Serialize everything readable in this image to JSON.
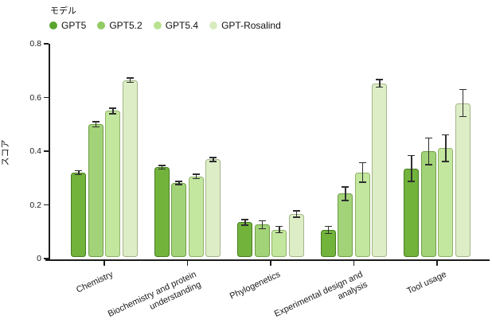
{
  "chart_data": {
    "type": "bar",
    "title": "",
    "legend_title": "モデル",
    "ylabel": "スコア",
    "xlabel": "",
    "ylim": [
      0,
      0.8
    ],
    "y_ticks": [
      0,
      0.2,
      0.4,
      0.6,
      0.8
    ],
    "y_tick_labels": [
      "0",
      "0.2",
      "0.4",
      "0.6",
      "0.8"
    ],
    "grid": false,
    "legend_position": "top-left",
    "error_bars": true,
    "categories": [
      "Chemistry",
      "Biochemistry and protein\nunderstanding",
      "Phylogenetics",
      "Experimental design and\nanalysis",
      "Tool usage"
    ],
    "series": [
      {
        "name": "GPT5",
        "dot": "#5aa52e",
        "fill": "#72b33c",
        "stroke": "#497c22",
        "values": [
          0.32,
          0.34,
          0.135,
          0.107,
          0.335
        ],
        "errors": [
          0.008,
          0.006,
          0.01,
          0.013,
          0.048
        ]
      },
      {
        "name": "GPT5.2",
        "dot": "#90cb63",
        "fill": "#a3d378",
        "stroke": "#6f9d48",
        "values": [
          0.5,
          0.281,
          0.126,
          0.242,
          0.399
        ],
        "errors": [
          0.01,
          0.006,
          0.015,
          0.025,
          0.05
        ]
      },
      {
        "name": "GPT5.4",
        "dot": "#b9e292",
        "fill": "#c3e79e",
        "stroke": "#8fb168",
        "values": [
          0.55,
          0.306,
          0.108,
          0.321,
          0.411
        ],
        "errors": [
          0.01,
          0.008,
          0.012,
          0.036,
          0.05
        ]
      },
      {
        "name": "GPT-Rosalind",
        "dot": "#d8ecbf",
        "fill": "#ddeec6",
        "stroke": "#a4b588",
        "values": [
          0.665,
          0.369,
          0.166,
          0.652,
          0.579
        ],
        "errors": [
          0.008,
          0.007,
          0.012,
          0.014,
          0.05
        ]
      }
    ]
  }
}
